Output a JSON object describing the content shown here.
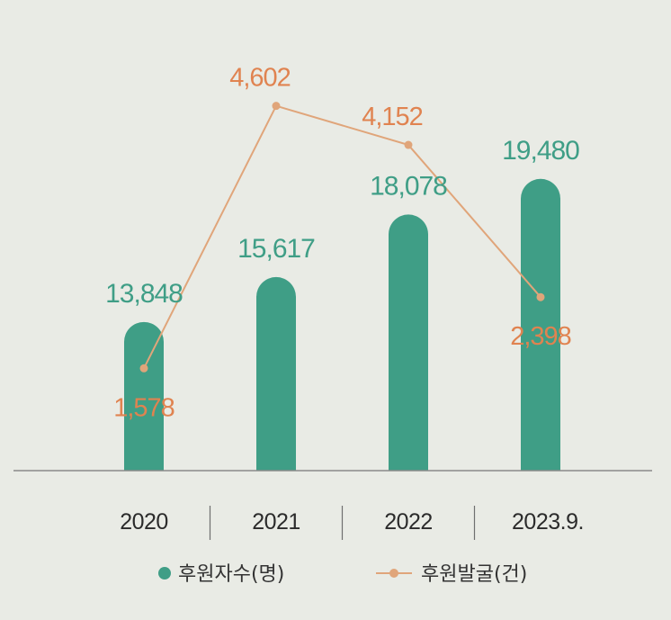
{
  "chart_data": {
    "type": "bar",
    "categories": [
      "2020",
      "2021",
      "2022",
      "2023.9."
    ],
    "series": [
      {
        "name": "후원자수(명)",
        "type": "bar",
        "values": [
          13848,
          15617,
          18078,
          19480
        ],
        "labels": [
          "13,848",
          "15,617",
          "18,078",
          "19,480"
        ],
        "color": "#3f9e86",
        "label_color": "#3f9e86"
      },
      {
        "name": "후원발굴(건)",
        "type": "line",
        "values": [
          1578,
          4602,
          4152,
          2398
        ],
        "labels": [
          "1,578",
          "4,602",
          "4,152",
          "2,398"
        ],
        "color": "#e0a57a",
        "label_color": "#e08350"
      }
    ],
    "bar_ylim": [
      8000,
      20500
    ],
    "line_ylim": [
      1000,
      5200
    ],
    "legend_position": "bottom",
    "grid": false
  }
}
